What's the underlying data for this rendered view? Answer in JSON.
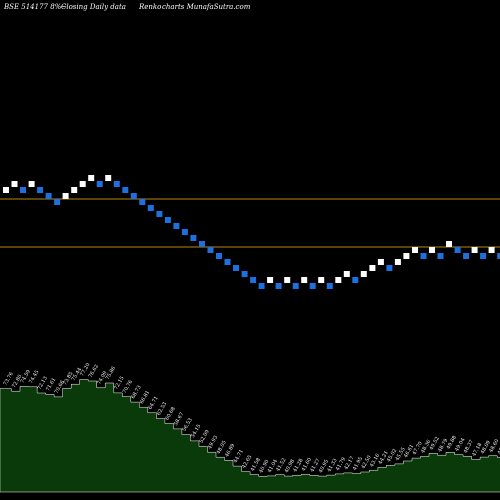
{
  "header": {
    "symbol": "BSE 514177 8%~",
    "description": "Closing Daily data",
    "chart_kind": "Renko",
    "source": "charts MunafaSutra.com"
  },
  "colors": {
    "background": "#000000",
    "brick_up": "#ffffff",
    "brick_down": "#1e6fe0",
    "reference_line": "#b8860b",
    "volume_fill": "#0a3a0a",
    "volume_outline": "#ffffff"
  },
  "chart_data": {
    "type": "renko",
    "title": "BSE 514177 8%~ Closing Daily data Renko charts MunafaSutra.com",
    "bricks": [
      {
        "level": 3,
        "dir": "up"
      },
      {
        "level": 4,
        "dir": "up"
      },
      {
        "level": 3,
        "dir": "down"
      },
      {
        "level": 4,
        "dir": "up"
      },
      {
        "level": 3,
        "dir": "down"
      },
      {
        "level": 2,
        "dir": "down"
      },
      {
        "level": 1,
        "dir": "down"
      },
      {
        "level": 2,
        "dir": "up"
      },
      {
        "level": 3,
        "dir": "up"
      },
      {
        "level": 4,
        "dir": "up"
      },
      {
        "level": 5,
        "dir": "up"
      },
      {
        "level": 4,
        "dir": "down"
      },
      {
        "level": 5,
        "dir": "up"
      },
      {
        "level": 4,
        "dir": "down"
      },
      {
        "level": 3,
        "dir": "down"
      },
      {
        "level": 2,
        "dir": "down"
      },
      {
        "level": 1,
        "dir": "down"
      },
      {
        "level": 0,
        "dir": "down"
      },
      {
        "level": -1,
        "dir": "down"
      },
      {
        "level": -2,
        "dir": "down"
      },
      {
        "level": -3,
        "dir": "down"
      },
      {
        "level": -4,
        "dir": "down"
      },
      {
        "level": -5,
        "dir": "down"
      },
      {
        "level": -6,
        "dir": "down"
      },
      {
        "level": -7,
        "dir": "down"
      },
      {
        "level": -8,
        "dir": "down"
      },
      {
        "level": -9,
        "dir": "down"
      },
      {
        "level": -10,
        "dir": "down"
      },
      {
        "level": -11,
        "dir": "down"
      },
      {
        "level": -12,
        "dir": "down"
      },
      {
        "level": -13,
        "dir": "down"
      },
      {
        "level": -12,
        "dir": "up"
      },
      {
        "level": -13,
        "dir": "down"
      },
      {
        "level": -12,
        "dir": "up"
      },
      {
        "level": -13,
        "dir": "down"
      },
      {
        "level": -12,
        "dir": "up"
      },
      {
        "level": -13,
        "dir": "down"
      },
      {
        "level": -12,
        "dir": "up"
      },
      {
        "level": -13,
        "dir": "down"
      },
      {
        "level": -12,
        "dir": "up"
      },
      {
        "level": -11,
        "dir": "up"
      },
      {
        "level": -12,
        "dir": "down"
      },
      {
        "level": -11,
        "dir": "up"
      },
      {
        "level": -10,
        "dir": "up"
      },
      {
        "level": -9,
        "dir": "up"
      },
      {
        "level": -10,
        "dir": "down"
      },
      {
        "level": -9,
        "dir": "up"
      },
      {
        "level": -8,
        "dir": "up"
      },
      {
        "level": -7,
        "dir": "up"
      },
      {
        "level": -8,
        "dir": "down"
      },
      {
        "level": -7,
        "dir": "up"
      },
      {
        "level": -8,
        "dir": "down"
      },
      {
        "level": -6,
        "dir": "up"
      },
      {
        "level": -7,
        "dir": "down"
      },
      {
        "level": -8,
        "dir": "down"
      },
      {
        "level": -7,
        "dir": "up"
      },
      {
        "level": -8,
        "dir": "down"
      },
      {
        "level": -7,
        "dir": "up"
      },
      {
        "level": -8,
        "dir": "down"
      }
    ],
    "reference_levels": [
      2,
      -6
    ],
    "volume_labels": [
      "73.76",
      "72.80",
      "74.59",
      "74.45",
      "72.13",
      "71.61",
      "70.66",
      "73.85",
      "75.44",
      "77.20",
      "76.62",
      "74.09",
      "75.86",
      "72.15",
      "70.76",
      "68.73",
      "66.81",
      "64.71",
      "62.53",
      "60.68",
      "58.67",
      "56.53",
      "54.15",
      "52.09",
      "49.93",
      "48.05",
      "46.89",
      "44.71",
      "42.65",
      "41.58",
      "40.90",
      "41.04",
      "41.52",
      "40.98",
      "41.28",
      "41.60",
      "41.27",
      "40.95",
      "41.33",
      "41.79",
      "42.17",
      "41.95",
      "42.50",
      "43.16",
      "44.21",
      "45.02",
      "45.55",
      "46.61",
      "47.70",
      "48.36",
      "49.52",
      "48.79",
      "49.88",
      "49.04",
      "48.37",
      "47.18",
      "48.09",
      "48.60",
      "47.95"
    ]
  }
}
